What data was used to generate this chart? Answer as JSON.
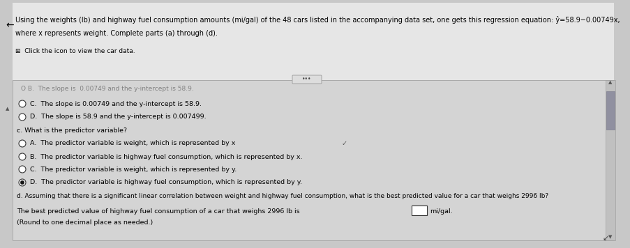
{
  "bg_color": "#c8c8c8",
  "header_bg": "#e8e8e8",
  "panel_bg": "#d8d8d8",
  "title_text": "Using the weights (lb) and highway fuel consumption amounts (mi/gal) of the 48 cars listed in the accompanying data set, one gets this regression equation: ŷ=58.9−0.00749x,",
  "title_line2": "where x represents weight. Complete parts (a) through (d).",
  "icon_text": "⊞  Click the icon to view the car data.",
  "left_arrow": "←",
  "dots_text": "•••",
  "line_b_faded": "O B.  The slope is  0.00749 and the y-intercept is 58.9.",
  "option_C_text": "The slope is 0.00749 and the y-intercept is 58.9.",
  "option_D_text": "The slope is 58.9 and the y-intercept is 0.007499.",
  "part_c_label": "c. What is the predictor variable?",
  "optA_text": "The predictor variable is weight, which is represented by x",
  "optB_text": "The predictor variable is highway fuel consumption, which is represented by x.",
  "optC_text": "The predictor variable is weight, which is represented by y.",
  "optD_text": "The predictor variable is highway fuel consumption, which is represented by y.",
  "part_d_label": "d. Assuming that there is a significant linear correlation between weight and highway fuel consumption, what is the best predicted value for a car that weighs 2996 lb?",
  "answer_line1": "The best predicted value of highway fuel consumption of a car that weighs 2996 lb is",
  "answer_line2": "mi/gal.",
  "round_note": "(Round to one decimal place as needed.)",
  "checkmark": "✓",
  "font_size_title": 7.0,
  "font_size_body": 6.8,
  "font_size_icon": 6.5
}
